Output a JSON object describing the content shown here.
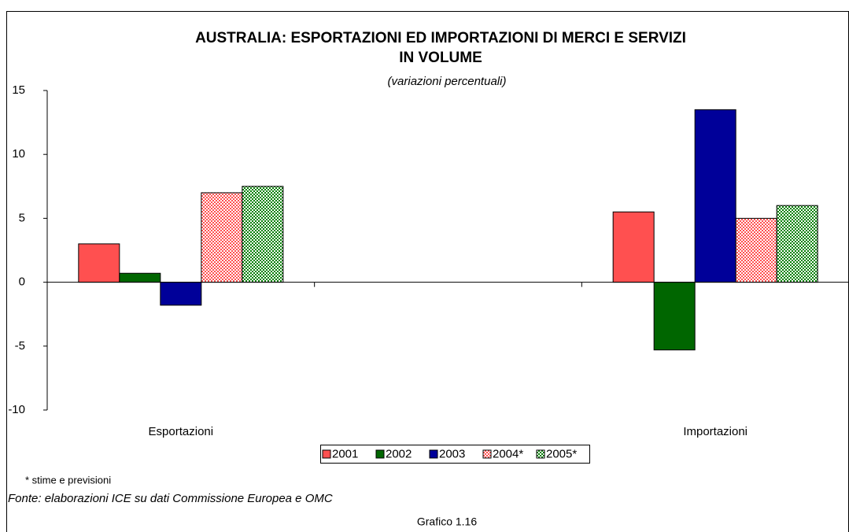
{
  "chart_data": {
    "type": "bar",
    "title": "AUSTRALIA: ESPORTAZIONI ED IMPORTAZIONI DI MERCI E SERVIZI IN VOLUME",
    "subtitle": "(variazioni percentuali)",
    "categories": [
      "Esportazioni",
      null,
      "Importazioni"
    ],
    "series": [
      {
        "name": "2001",
        "color": "#ff5050",
        "pattern": false,
        "values": [
          3,
          null,
          5.5
        ]
      },
      {
        "name": "2002",
        "color": "#006600",
        "pattern": false,
        "values": [
          0.7,
          null,
          -5.3
        ]
      },
      {
        "name": "2003",
        "color": "#000099",
        "pattern": false,
        "values": [
          -1.8,
          null,
          13.5
        ]
      },
      {
        "name": "2004*",
        "color": "#ff5050",
        "pattern": true,
        "values": [
          7,
          null,
          5
        ]
      },
      {
        "name": "2005*",
        "color": "#008000",
        "pattern": true,
        "values": [
          7.5,
          null,
          6
        ]
      }
    ],
    "ylim": [
      -10,
      15
    ],
    "yticks": [
      -10,
      -5,
      0,
      5,
      10,
      15
    ],
    "grid": false,
    "legend": "bottom",
    "note": "* stime e previsioni",
    "source": "Fonte: elaborazioni ICE su dati Commissione Europea e OMC",
    "caption": "Grafico 1.16"
  }
}
